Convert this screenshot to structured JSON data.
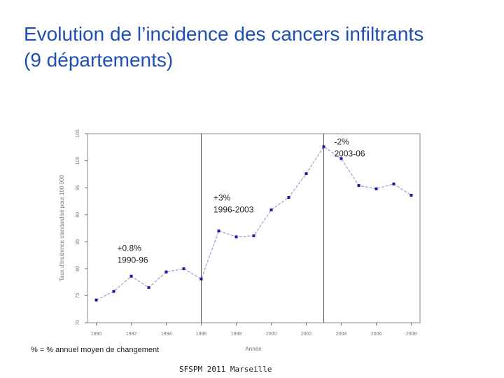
{
  "slide": {
    "title_line1": "Evolution de l’incidence des cancers infiltrants",
    "title_line2": "(9 départements)",
    "footnote": "% = % annuel moyen de changement",
    "footer": "SFSPM 2011 Marseille"
  },
  "chart_data": {
    "type": "line",
    "title": "",
    "xlabel": "Année",
    "ylabel": "Taux d'incidence standardisé pour 100 000",
    "x": [
      1990,
      1991,
      1992,
      1993,
      1994,
      1995,
      1996,
      1997,
      1998,
      1999,
      2000,
      2001,
      2002,
      2003,
      2004,
      2005,
      2006,
      2007,
      2008
    ],
    "series": [
      {
        "values": [
          74.2,
          75.8,
          78.6,
          76.5,
          79.4,
          80.0,
          78.1,
          87.0,
          85.9,
          86.1,
          90.9,
          93.2,
          97.6,
          102.6,
          100.4,
          95.4,
          94.8,
          95.7,
          93.6
        ]
      }
    ],
    "xlim": [
      1989.5,
      2008.5
    ],
    "ylim": [
      70,
      105
    ],
    "xticks": [
      "1990",
      "1992",
      "1994",
      "1996",
      "1998",
      "2000",
      "2002",
      "2004",
      "2006",
      "2008"
    ],
    "yticks": [
      "70",
      "75",
      "80",
      "85",
      "90",
      "95",
      "100",
      "105"
    ],
    "breakpoints": [
      1996,
      2003
    ],
    "annotations": [
      {
        "line1": "+0.8%",
        "line2": "1990-96",
        "x": 1991.2,
        "y": 83.3
      },
      {
        "line1": "+3%",
        "line2": "1996-2003",
        "x": 1996.7,
        "y": 92.6
      },
      {
        "line1": "-2%",
        "line2": "2003-06",
        "x": 2003.6,
        "y": 103.0
      }
    ],
    "grid": false,
    "colors": {
      "line": "#9aa0d8",
      "marker": "#1a1aa0",
      "axis": "#777777",
      "text": "#222222"
    }
  }
}
